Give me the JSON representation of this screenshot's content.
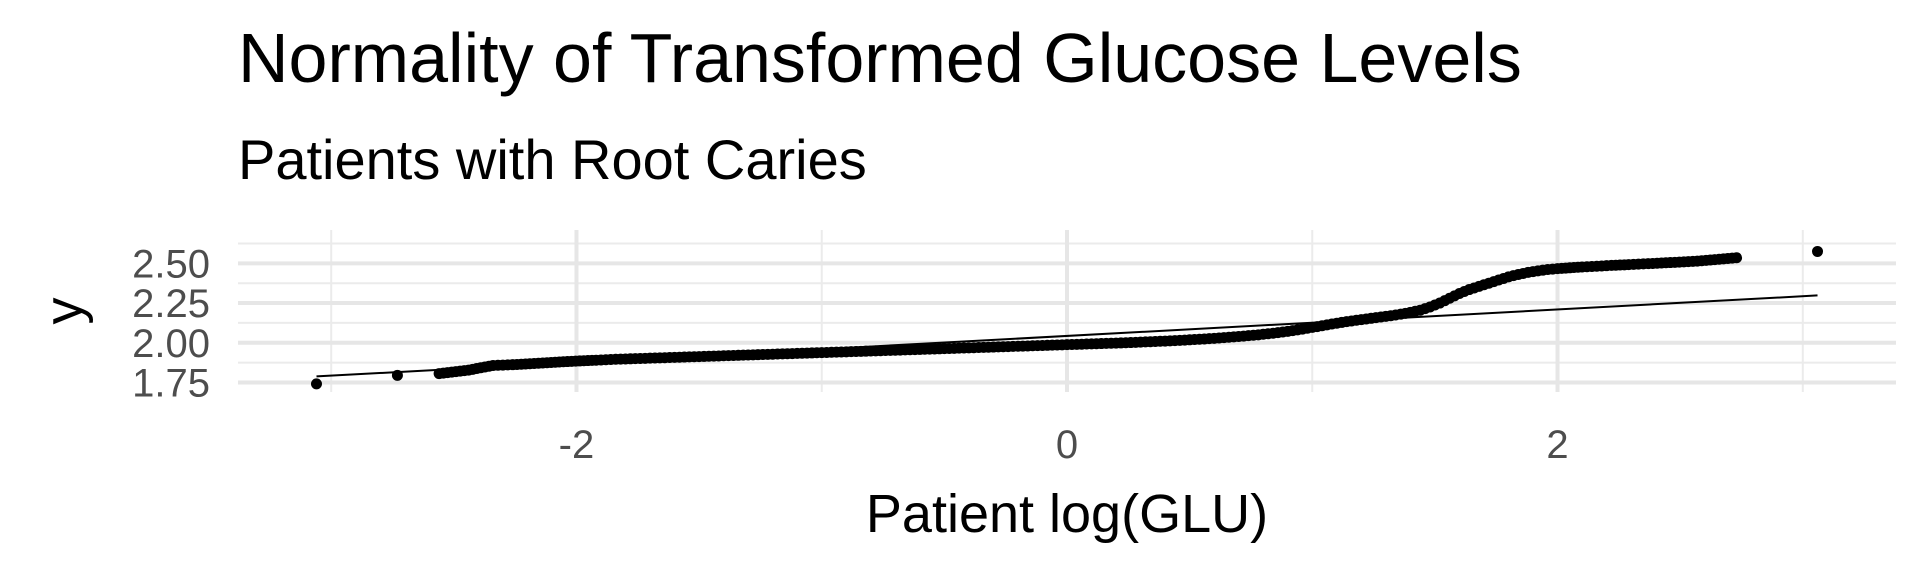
{
  "chart_data": {
    "type": "scatter",
    "title": "Normality of Transformed Glucose Levels",
    "subtitle": "Patients with Root Caries",
    "xlabel": "Patient log(GLU)",
    "ylabel": "y",
    "xlim": [
      -3.38,
      3.38
    ],
    "ylim": [
      1.69,
      2.71
    ],
    "x_ticks": [
      -2,
      0,
      2
    ],
    "x_tick_labels": [
      "-2",
      "0",
      "2"
    ],
    "y_ticks": [
      1.75,
      2.0,
      2.25,
      2.5
    ],
    "y_tick_labels": [
      "1.75",
      "2.00",
      "2.25",
      "2.50"
    ],
    "grid": true,
    "reference_line": {
      "x": [
        -3.06,
        3.06
      ],
      "y": [
        1.788,
        2.298
      ]
    },
    "points": [
      [
        -3.06,
        1.741
      ],
      [
        -2.73,
        1.795
      ],
      [
        -2.56,
        1.806
      ],
      [
        -2.44,
        1.828
      ],
      [
        -2.34,
        1.857
      ],
      [
        -2.26,
        1.862
      ],
      [
        -2.19,
        1.868
      ],
      [
        -2.12,
        1.874
      ],
      [
        -2.07,
        1.879
      ],
      [
        -2.02,
        1.883
      ],
      [
        -1.97,
        1.887
      ],
      [
        -1.92,
        1.89
      ],
      [
        -1.88,
        1.893
      ],
      [
        -1.84,
        1.896
      ],
      [
        -1.8,
        1.898
      ],
      [
        -1.76,
        1.9
      ],
      [
        -1.72,
        1.902
      ],
      [
        -1.68,
        1.904
      ],
      [
        -1.64,
        1.906
      ],
      [
        -1.6,
        1.908
      ],
      [
        -1.56,
        1.91
      ],
      [
        -1.5,
        1.913
      ],
      [
        -1.44,
        1.916
      ],
      [
        -1.38,
        1.919
      ],
      [
        -1.32,
        1.922
      ],
      [
        -1.26,
        1.925
      ],
      [
        -1.2,
        1.928
      ],
      [
        -1.14,
        1.931
      ],
      [
        -1.08,
        1.934
      ],
      [
        -1.02,
        1.937
      ],
      [
        -0.96,
        1.94
      ],
      [
        -0.9,
        1.943
      ],
      [
        -0.84,
        1.946
      ],
      [
        -0.78,
        1.949
      ],
      [
        -0.72,
        1.952
      ],
      [
        -0.66,
        1.955
      ],
      [
        -0.6,
        1.958
      ],
      [
        -0.54,
        1.961
      ],
      [
        -0.48,
        1.964
      ],
      [
        -0.42,
        1.967
      ],
      [
        -0.36,
        1.97
      ],
      [
        -0.3,
        1.973
      ],
      [
        -0.24,
        1.976
      ],
      [
        -0.18,
        1.979
      ],
      [
        -0.12,
        1.982
      ],
      [
        -0.06,
        1.985
      ],
      [
        0.0,
        1.988
      ],
      [
        0.06,
        1.991
      ],
      [
        0.12,
        1.994
      ],
      [
        0.18,
        1.997
      ],
      [
        0.24,
        2.0
      ],
      [
        0.3,
        2.004
      ],
      [
        0.36,
        2.008
      ],
      [
        0.42,
        2.012
      ],
      [
        0.48,
        2.017
      ],
      [
        0.54,
        2.022
      ],
      [
        0.6,
        2.028
      ],
      [
        0.66,
        2.035
      ],
      [
        0.72,
        2.042
      ],
      [
        0.78,
        2.05
      ],
      [
        0.84,
        2.06
      ],
      [
        0.9,
        2.072
      ],
      [
        0.96,
        2.086
      ],
      [
        1.02,
        2.102
      ],
      [
        1.08,
        2.118
      ],
      [
        1.14,
        2.133
      ],
      [
        1.2,
        2.146
      ],
      [
        1.26,
        2.158
      ],
      [
        1.32,
        2.17
      ],
      [
        1.38,
        2.185
      ],
      [
        1.44,
        2.205
      ],
      [
        1.48,
        2.225
      ],
      [
        1.52,
        2.25
      ],
      [
        1.56,
        2.28
      ],
      [
        1.6,
        2.31
      ],
      [
        1.64,
        2.335
      ],
      [
        1.68,
        2.355
      ],
      [
        1.72,
        2.375
      ],
      [
        1.76,
        2.395
      ],
      [
        1.8,
        2.415
      ],
      [
        1.84,
        2.43
      ],
      [
        1.88,
        2.443
      ],
      [
        1.92,
        2.453
      ],
      [
        1.96,
        2.461
      ],
      [
        2.0,
        2.467
      ],
      [
        2.05,
        2.472
      ],
      [
        2.1,
        2.477
      ],
      [
        2.16,
        2.482
      ],
      [
        2.22,
        2.487
      ],
      [
        2.29,
        2.492
      ],
      [
        2.37,
        2.498
      ],
      [
        2.46,
        2.505
      ],
      [
        2.57,
        2.514
      ],
      [
        2.73,
        2.535
      ],
      [
        3.06,
        2.575
      ]
    ]
  }
}
